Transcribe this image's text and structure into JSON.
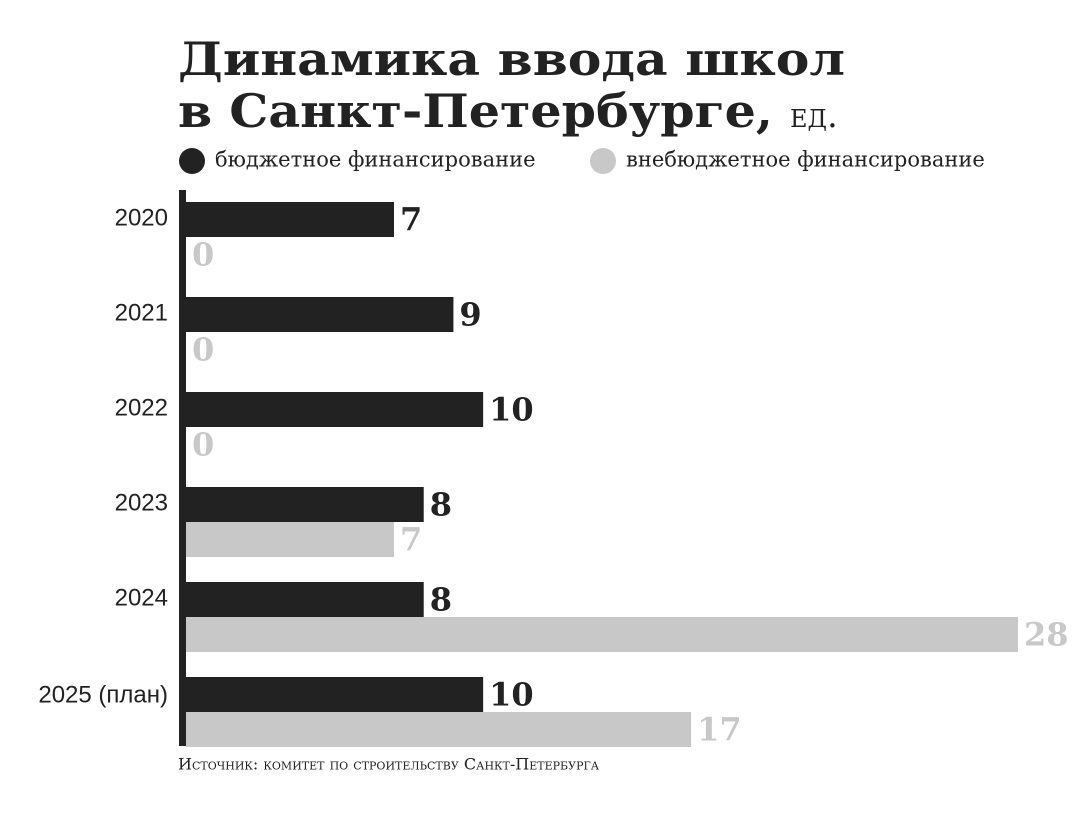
{
  "chart_data": {
    "type": "hbar",
    "title_lines": [
      "Динамика ввода школ",
      "в Санкт-Петербурге,"
    ],
    "unit": "ед.",
    "categories": [
      "2020",
      "2021",
      "2022",
      "2023",
      "2024",
      "2025 (план)"
    ],
    "series": [
      {
        "name": "бюджетное финансирование",
        "color": "#222222",
        "values": [
          7,
          9,
          10,
          8,
          8,
          10
        ]
      },
      {
        "name": "внебюджетное финансирование",
        "color": "#c8c8c8",
        "values": [
          0,
          0,
          0,
          7,
          28,
          17
        ]
      }
    ],
    "xlim": [
      0,
      28
    ],
    "source": "Источник: комитет по строительству Санкт-Петербурга"
  }
}
